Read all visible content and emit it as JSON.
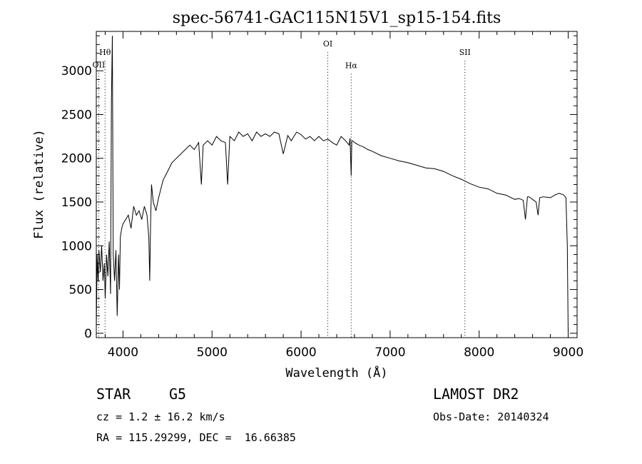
{
  "chart_data": {
    "type": "line",
    "title": "spec-56741-GAC115N15V1_sp15-154.fits",
    "xlabel": "Wavelength (Å)",
    "ylabel": "Flux (relative)",
    "xlim": [
      3700,
      9100
    ],
    "ylim": [
      -50,
      3450
    ],
    "x_ticks": [
      4000,
      5000,
      6000,
      7000,
      8000,
      9000
    ],
    "y_ticks": [
      0,
      500,
      1000,
      1500,
      2000,
      2500,
      3000
    ],
    "grid": false,
    "line_color": "#000000",
    "spectral_lines": [
      {
        "label": "Hθ",
        "wavelength": 3798,
        "y": 3180
      },
      {
        "label": "OII",
        "wavelength": 3727,
        "y": 3040
      },
      {
        "label": "OI",
        "wavelength": 6300,
        "y": 3280
      },
      {
        "label": "Hα",
        "wavelength": 6563,
        "y": 3030
      },
      {
        "label": "SII",
        "wavelength": 7840,
        "y": 3180
      }
    ],
    "series": [
      {
        "x": [
          3700,
          3710,
          3720,
          3730,
          3745,
          3760,
          3775,
          3790,
          3800,
          3815,
          3830,
          3845,
          3860,
          3870,
          3880,
          3890,
          3905,
          3920,
          3935,
          3950,
          3960,
          3970,
          3985,
          4000,
          4030,
          4060,
          4090,
          4120,
          4150,
          4180,
          4210,
          4240,
          4270,
          4290,
          4300,
          4310,
          4320,
          4340,
          4370,
          4400,
          4450,
          4500,
          4550,
          4600,
          4650,
          4700,
          4750,
          4800,
          4850,
          4880,
          4900,
          4950,
          5000,
          5050,
          5100,
          5150,
          5175,
          5200,
          5250,
          5300,
          5350,
          5400,
          5450,
          5500,
          5550,
          5600,
          5650,
          5700,
          5750,
          5800,
          5850,
          5890,
          5950,
          6000,
          6050,
          6100,
          6150,
          6200,
          6250,
          6300,
          6350,
          6400,
          6450,
          6500,
          6540,
          6550,
          6563,
          6570,
          6580,
          6600,
          6650,
          6700,
          6750,
          6800,
          6900,
          7000,
          7100,
          7200,
          7300,
          7400,
          7500,
          7600,
          7700,
          7800,
          7900,
          8000,
          8100,
          8200,
          8300,
          8400,
          8450,
          8495,
          8520,
          8542,
          8560,
          8600,
          8640,
          8662,
          8680,
          8720,
          8800,
          8850,
          8900,
          8950,
          8975,
          8990,
          9000
        ],
        "y": [
          50,
          900,
          600,
          950,
          700,
          1000,
          600,
          800,
          400,
          900,
          650,
          1050,
          450,
          2650,
          3400,
          900,
          600,
          950,
          200,
          900,
          500,
          1100,
          1200,
          1250,
          1300,
          1350,
          1200,
          1450,
          1350,
          1400,
          1300,
          1450,
          1350,
          1100,
          600,
          1250,
          1700,
          1500,
          1400,
          1550,
          1750,
          1850,
          1950,
          2000,
          2050,
          2100,
          2150,
          2100,
          2180,
          1700,
          2150,
          2200,
          2150,
          2250,
          2200,
          2180,
          1700,
          2250,
          2200,
          2300,
          2250,
          2280,
          2200,
          2300,
          2250,
          2280,
          2250,
          2300,
          2280,
          2050,
          2260,
          2200,
          2300,
          2270,
          2220,
          2250,
          2200,
          2250,
          2200,
          2220,
          2180,
          2150,
          2250,
          2200,
          2150,
          2230,
          1800,
          2200,
          2200,
          2180,
          2150,
          2130,
          2100,
          2080,
          2030,
          2000,
          1970,
          1950,
          1920,
          1890,
          1880,
          1850,
          1800,
          1760,
          1710,
          1670,
          1650,
          1600,
          1580,
          1530,
          1540,
          1520,
          1300,
          1560,
          1560,
          1530,
          1500,
          1350,
          1550,
          1560,
          1550,
          1580,
          1600,
          1580,
          1550,
          1000,
          0
        ]
      }
    ]
  },
  "footer": {
    "class_label": "STAR",
    "subclass": "G5",
    "survey": "LAMOST DR2",
    "redshift": "cz = 1.2 ± 16.2 km/s",
    "obs_date": "Obs-Date: 20140324",
    "coords": "RA = 115.29299, DEC =  16.66385"
  }
}
